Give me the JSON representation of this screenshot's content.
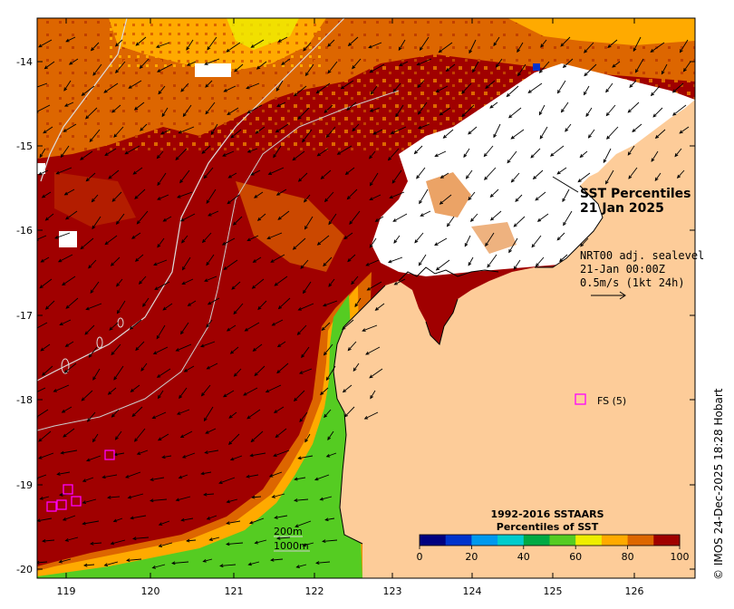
{
  "title": {
    "line1": "SST Percentiles",
    "line2": "21 Jan 2025"
  },
  "current_info": {
    "line1": "NRT00 adj. sealevel",
    "line2": "21-Jan 00:00Z",
    "line3": "0.5m/s (1kt 24h)"
  },
  "station": {
    "label": "FS (5)",
    "lon": 125.3,
    "lat": -18.0,
    "color": "#ff00ff"
  },
  "depth_labels": {
    "d200": "200m",
    "d1000": "1000m"
  },
  "colorbar": {
    "title1": "1992-2016 SSTAARS",
    "title2": "Percentiles of SST",
    "ticks": [
      "0",
      "20",
      "40",
      "60",
      "80",
      "100"
    ],
    "colors": [
      "#000080",
      "#0033cc",
      "#0099ee",
      "#00cccc",
      "#00aa44",
      "#55cc22",
      "#eeee00",
      "#ffaa00",
      "#dd6600",
      "#a00000"
    ]
  },
  "credit": "© IMOS 24-Dec-2025 18:28 Hobart",
  "axes": {
    "lon_ticks": [
      "119",
      "120",
      "121",
      "122",
      "123",
      "124",
      "125",
      "126"
    ],
    "lat_ticks": [
      "-14",
      "-15",
      "-16",
      "-17",
      "-18",
      "-19",
      "-20"
    ],
    "lon_range": [
      118.7,
      126.8
    ],
    "lat_range": [
      -20.1,
      -13.6
    ]
  },
  "colors": {
    "land": "#fdcc99",
    "sst_dominant": "#a00000",
    "cloud": "#ffffff"
  }
}
